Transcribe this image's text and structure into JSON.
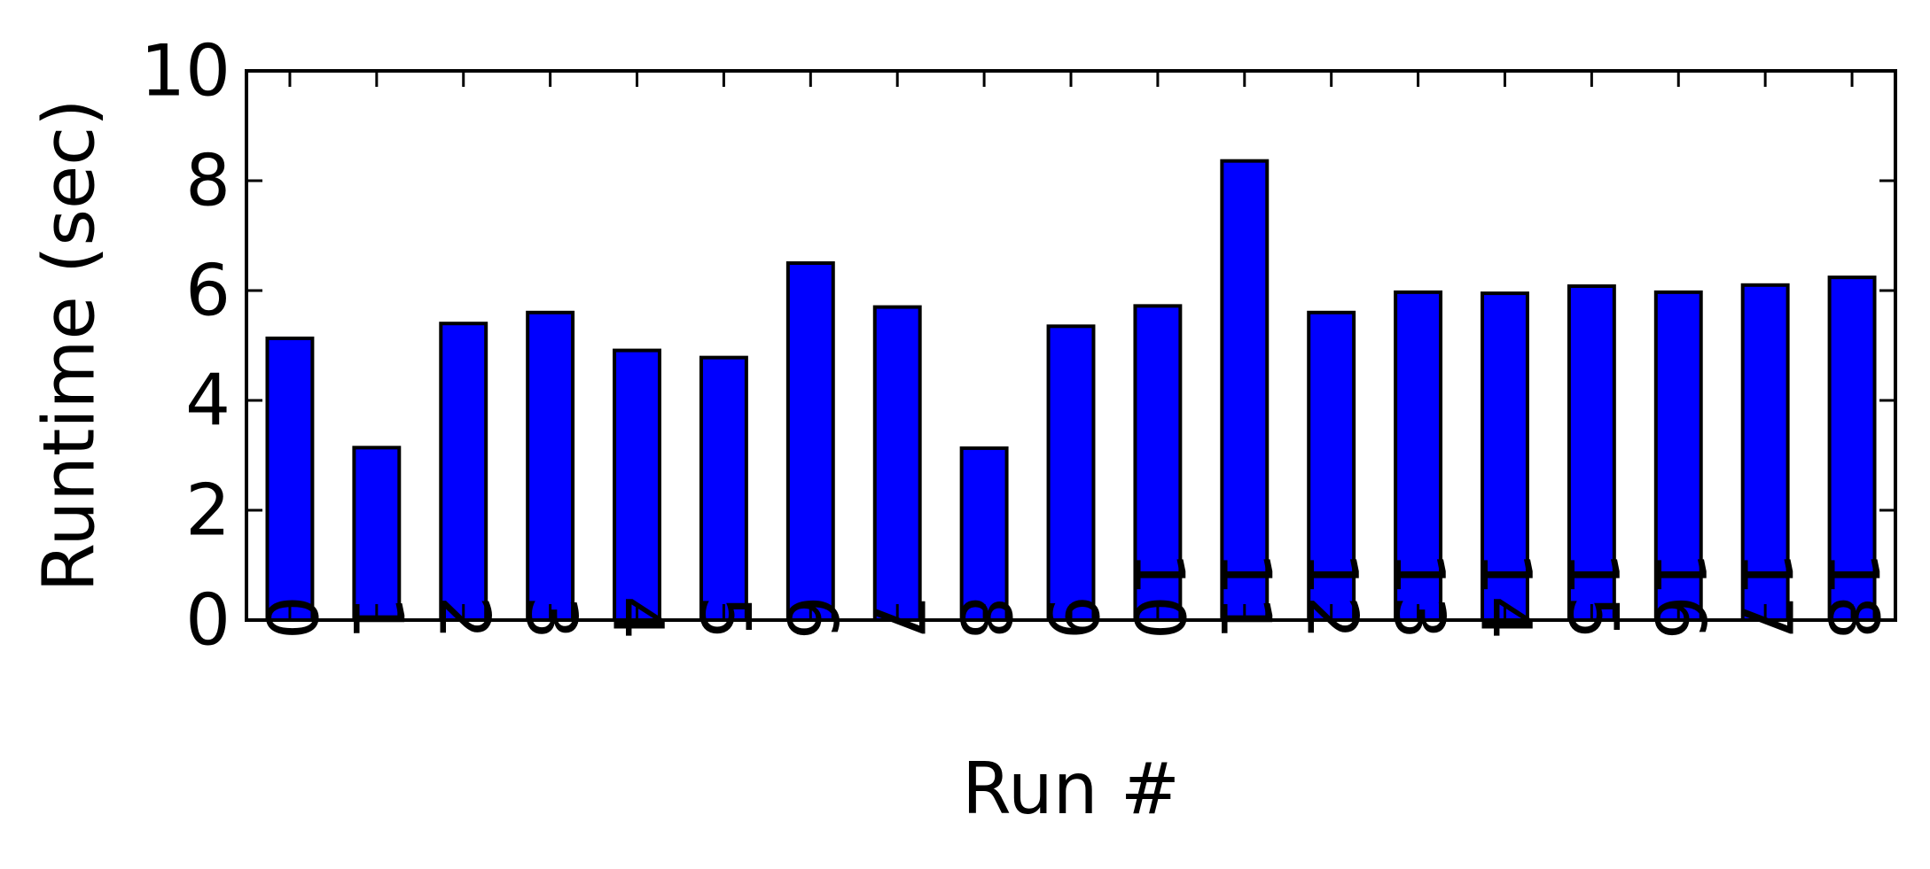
{
  "chart_data": {
    "type": "bar",
    "title": "",
    "xlabel": "Run #",
    "ylabel": "Runtime (sec)",
    "categories": [
      "0",
      "1",
      "2",
      "3",
      "4",
      "5",
      "6",
      "7",
      "8",
      "9",
      "10",
      "11",
      "12",
      "13",
      "14",
      "15",
      "16",
      "17",
      "18"
    ],
    "values": [
      5.13,
      3.14,
      5.4,
      5.6,
      4.91,
      4.78,
      6.5,
      5.7,
      3.13,
      5.35,
      5.72,
      8.36,
      5.6,
      5.97,
      5.95,
      6.08,
      5.97,
      6.1,
      6.24
    ],
    "ylim": [
      0,
      10
    ],
    "yticks": [
      0,
      2,
      4,
      6,
      8,
      10
    ],
    "grid": false,
    "legend": "none",
    "colors": {
      "bar_fill": "#0000ff",
      "bar_edge": "#000000",
      "axis": "#000000"
    }
  }
}
